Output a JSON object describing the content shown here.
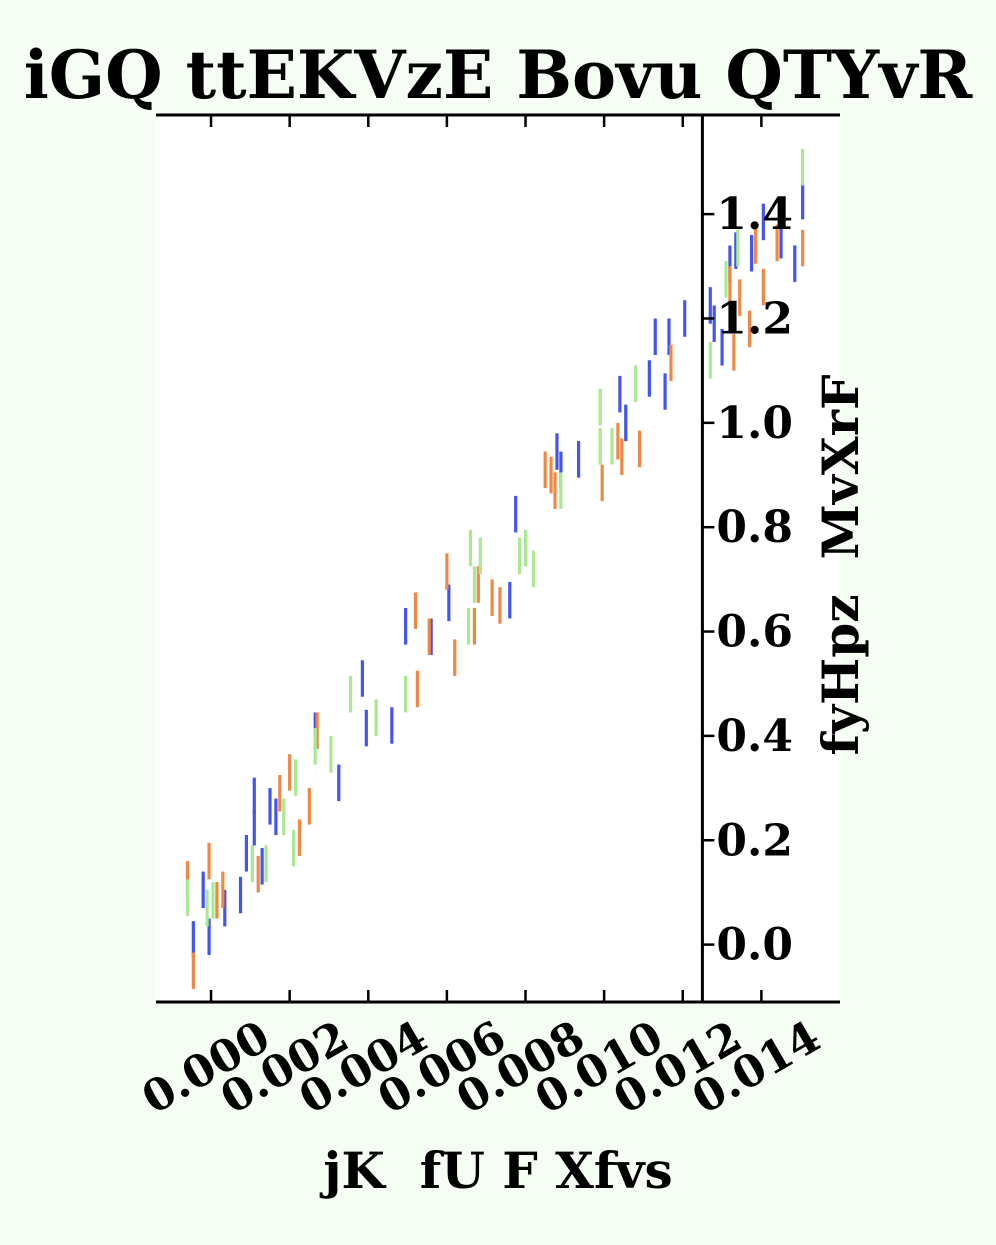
{
  "chart_data": {
    "type": "scatter",
    "title": "iGQ ttEKVzE Bovu QTYvR",
    "xlabel": "jK  fU F Xfvs",
    "ylabel": "fyHpz  MvXrF",
    "xlim": [
      -0.0014,
      0.016
    ],
    "ylim": [
      -0.11,
      1.59
    ],
    "x_ticks": [
      "0.000",
      "0.002",
      "0.004",
      "0.006",
      "0.008",
      "0.010",
      "0.012",
      "0.014"
    ],
    "y_ticks": [
      "0.0",
      "0.2",
      "0.4",
      "0.6",
      "0.8",
      "1.0",
      "1.2",
      "1.4"
    ],
    "y_axis_position": "right spine at x=0.0125",
    "grid": false,
    "legend": "none",
    "marker": "vertical error bars (y-uncertainty)",
    "series": [
      {
        "color": "#4455ee",
        "points": [
          [
            -0.00045,
            0.01,
            0.035
          ],
          [
            -0.0002,
            0.105,
            0.035
          ],
          [
            -5e-05,
            0.015,
            0.035
          ],
          [
            0.00035,
            0.07,
            0.035
          ],
          [
            0.00075,
            0.095,
            0.035
          ],
          [
            0.0009,
            0.175,
            0.035
          ],
          [
            0.0011,
            0.285,
            0.035
          ],
          [
            0.0011,
            0.225,
            0.035
          ],
          [
            0.0013,
            0.15,
            0.035
          ],
          [
            0.0015,
            0.265,
            0.035
          ],
          [
            0.00165,
            0.245,
            0.035
          ],
          [
            0.00265,
            0.41,
            0.035
          ],
          [
            0.00325,
            0.31,
            0.035
          ],
          [
            0.00385,
            0.51,
            0.035
          ],
          [
            0.00395,
            0.415,
            0.035
          ],
          [
            0.0046,
            0.42,
            0.035
          ],
          [
            0.00495,
            0.61,
            0.035
          ],
          [
            0.0056,
            0.59,
            0.035
          ],
          [
            0.00605,
            0.655,
            0.035
          ],
          [
            0.0076,
            0.66,
            0.035
          ],
          [
            0.00775,
            0.825,
            0.035
          ],
          [
            0.0088,
            0.945,
            0.035
          ],
          [
            0.0089,
            0.91,
            0.035
          ],
          [
            0.00935,
            0.93,
            0.035
          ],
          [
            0.0104,
            1.055,
            0.035
          ],
          [
            0.01055,
            1.0,
            0.035
          ],
          [
            0.01115,
            1.085,
            0.035
          ],
          [
            0.0113,
            1.165,
            0.035
          ],
          [
            0.01155,
            1.06,
            0.035
          ],
          [
            0.01165,
            1.165,
            0.035
          ],
          [
            0.01205,
            1.2,
            0.035
          ],
          [
            0.0127,
            1.225,
            0.035
          ],
          [
            0.0128,
            1.19,
            0.035
          ],
          [
            0.013,
            1.145,
            0.035
          ],
          [
            0.0132,
            1.305,
            0.035
          ],
          [
            0.01335,
            1.33,
            0.035
          ],
          [
            0.01375,
            1.325,
            0.035
          ],
          [
            0.01405,
            1.385,
            0.035
          ],
          [
            0.0145,
            1.35,
            0.035
          ],
          [
            0.01485,
            1.305,
            0.035
          ],
          [
            0.01505,
            1.425,
            0.035
          ]
        ]
      },
      {
        "color": "#ee8844",
        "points": [
          [
            -0.0006,
            0.125,
            0.035
          ],
          [
            -0.00045,
            -0.05,
            0.035
          ],
          [
            -5e-05,
            0.16,
            0.035
          ],
          [
            0.00015,
            0.085,
            0.035
          ],
          [
            0.0003,
            0.105,
            0.035
          ],
          [
            0.0012,
            0.135,
            0.035
          ],
          [
            0.00175,
            0.29,
            0.035
          ],
          [
            0.002,
            0.33,
            0.035
          ],
          [
            0.00225,
            0.205,
            0.035
          ],
          [
            0.0025,
            0.265,
            0.035
          ],
          [
            0.0027,
            0.41,
            0.035
          ],
          [
            0.0052,
            0.64,
            0.035
          ],
          [
            0.00525,
            0.49,
            0.035
          ],
          [
            0.00555,
            0.59,
            0.035
          ],
          [
            0.006,
            0.715,
            0.035
          ],
          [
            0.0062,
            0.55,
            0.035
          ],
          [
            0.0067,
            0.61,
            0.035
          ],
          [
            0.0068,
            0.69,
            0.035
          ],
          [
            0.00715,
            0.665,
            0.035
          ],
          [
            0.00735,
            0.65,
            0.035
          ],
          [
            0.0085,
            0.91,
            0.035
          ],
          [
            0.00865,
            0.9,
            0.035
          ],
          [
            0.00875,
            0.87,
            0.035
          ],
          [
            0.00995,
            0.885,
            0.035
          ],
          [
            0.01035,
            0.965,
            0.035
          ],
          [
            0.01045,
            0.935,
            0.035
          ],
          [
            0.0109,
            0.95,
            0.035
          ],
          [
            0.0117,
            1.115,
            0.035
          ],
          [
            0.0132,
            1.265,
            0.035
          ],
          [
            0.0133,
            1.135,
            0.035
          ],
          [
            0.01345,
            1.24,
            0.035
          ],
          [
            0.0137,
            1.18,
            0.035
          ],
          [
            0.01405,
            1.26,
            0.035
          ],
          [
            0.01385,
            1.34,
            0.035
          ],
          [
            0.0144,
            1.345,
            0.035
          ],
          [
            0.01505,
            1.335,
            0.035
          ]
        ]
      },
      {
        "color": "#aae893",
        "points": [
          [
            -0.0006,
            0.09,
            0.035
          ],
          [
            -0.0001,
            0.07,
            0.035
          ],
          [
            5e-05,
            0.085,
            0.035
          ],
          [
            0.00105,
            0.155,
            0.035
          ],
          [
            0.0014,
            0.155,
            0.035
          ],
          [
            0.00185,
            0.245,
            0.035
          ],
          [
            0.0021,
            0.185,
            0.035
          ],
          [
            0.00215,
            0.32,
            0.035
          ],
          [
            0.00265,
            0.38,
            0.035
          ],
          [
            0.00305,
            0.365,
            0.035
          ],
          [
            0.00355,
            0.48,
            0.035
          ],
          [
            0.0042,
            0.435,
            0.035
          ],
          [
            0.00495,
            0.48,
            0.035
          ],
          [
            0.00655,
            0.61,
            0.035
          ],
          [
            0.0066,
            0.76,
            0.035
          ],
          [
            0.0067,
            0.69,
            0.035
          ],
          [
            0.00685,
            0.745,
            0.035
          ],
          [
            0.00785,
            0.745,
            0.035
          ],
          [
            0.008,
            0.76,
            0.035
          ],
          [
            0.0082,
            0.72,
            0.035
          ],
          [
            0.0089,
            0.87,
            0.035
          ],
          [
            0.0099,
            1.03,
            0.035
          ],
          [
            0.0099,
            0.955,
            0.035
          ],
          [
            0.0102,
            0.955,
            0.035
          ],
          [
            0.0108,
            1.075,
            0.035
          ],
          [
            0.0127,
            1.12,
            0.035
          ],
          [
            0.0131,
            1.275,
            0.035
          ],
          [
            0.0134,
            1.335,
            0.035
          ],
          [
            0.01505,
            1.49,
            0.035
          ]
        ]
      }
    ]
  }
}
